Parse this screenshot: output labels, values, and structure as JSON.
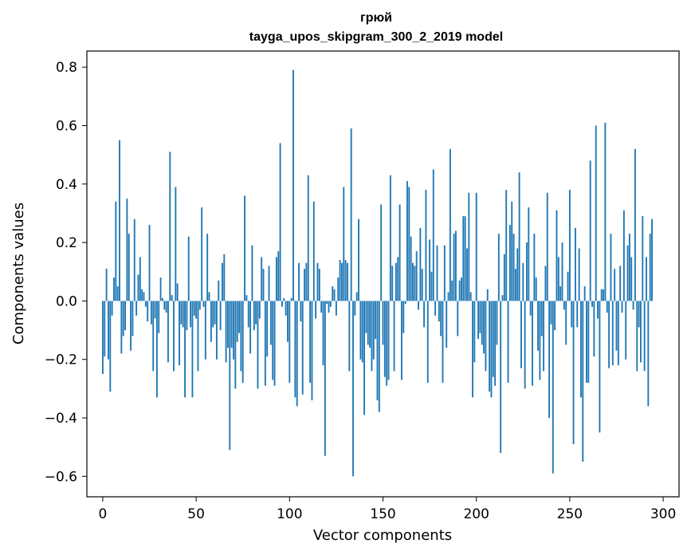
{
  "chart_data": {
    "type": "bar",
    "title": "грюй",
    "subtitle": "tayga_upos_skipgram_300_2_2019 model",
    "xlabel": "Vector components",
    "ylabel": "Components values",
    "xlim": [
      -8.5,
      308.5
    ],
    "ylim": [
      -0.67,
      0.855
    ],
    "xticks": [
      0,
      50,
      100,
      150,
      200,
      250,
      300
    ],
    "yticks": [
      -0.6,
      -0.4,
      -0.2,
      0.0,
      0.2,
      0.4,
      0.6,
      0.8
    ],
    "ytick_labels": [
      "−0.6",
      "−0.4",
      "−0.2",
      "0.0",
      "0.2",
      "0.4",
      "0.6",
      "0.8"
    ],
    "grid": false,
    "bar_color": "#1f77b4",
    "values": [
      -0.25,
      -0.19,
      0.11,
      -0.2,
      -0.31,
      -0.05,
      0.08,
      0.34,
      0.05,
      0.55,
      -0.18,
      -0.12,
      -0.1,
      0.35,
      0.23,
      -0.17,
      -0.12,
      0.28,
      -0.05,
      0.09,
      0.15,
      0.04,
      0.03,
      -0.02,
      -0.07,
      0.26,
      -0.08,
      -0.24,
      -0.06,
      -0.33,
      -0.11,
      0.08,
      0.01,
      -0.03,
      -0.04,
      -0.21,
      0.51,
      0.02,
      -0.24,
      0.39,
      0.06,
      -0.22,
      -0.08,
      -0.09,
      -0.33,
      -0.1,
      0.22,
      -0.09,
      -0.33,
      -0.05,
      -0.06,
      -0.24,
      -0.03,
      0.32,
      -0.02,
      -0.2,
      0.23,
      0.03,
      -0.14,
      -0.09,
      -0.08,
      -0.2,
      0.07,
      -0.1,
      0.13,
      0.16,
      -0.21,
      -0.16,
      -0.51,
      -0.16,
      -0.2,
      -0.3,
      -0.14,
      -0.11,
      -0.24,
      -0.28,
      0.36,
      0.02,
      -0.09,
      -0.18,
      0.19,
      -0.1,
      -0.08,
      -0.3,
      -0.06,
      0.15,
      0.11,
      -0.29,
      -0.19,
      0.12,
      -0.15,
      -0.27,
      -0.29,
      0.15,
      0.17,
      0.54,
      -0.02,
      0.01,
      -0.05,
      -0.14,
      -0.28,
      0.01,
      0.79,
      -0.33,
      -0.36,
      0.13,
      -0.07,
      -0.32,
      0.11,
      0.13,
      0.43,
      -0.28,
      -0.34,
      0.34,
      -0.06,
      0.13,
      0.11,
      -0.04,
      -0.22,
      -0.53,
      -0.01,
      -0.04,
      -0.02,
      0.05,
      0.04,
      -0.05,
      0.08,
      0.14,
      0.13,
      0.39,
      0.14,
      0.13,
      -0.24,
      0.59,
      -0.6,
      -0.05,
      0.03,
      0.28,
      -0.2,
      -0.21,
      -0.39,
      -0.11,
      -0.15,
      -0.16,
      -0.24,
      -0.2,
      -0.13,
      -0.34,
      -0.38,
      0.33,
      -0.15,
      -0.26,
      -0.29,
      -0.27,
      0.43,
      0.12,
      -0.24,
      0.13,
      0.15,
      0.33,
      -0.27,
      -0.11,
      -0.01,
      0.41,
      0.39,
      0.22,
      0.13,
      0.12,
      0.17,
      -0.03,
      0.25,
      0.11,
      -0.09,
      0.38,
      -0.28,
      0.21,
      0.1,
      0.45,
      -0.05,
      0.19,
      -0.07,
      -0.12,
      -0.28,
      0.19,
      -0.16,
      0.03,
      0.52,
      0.07,
      0.23,
      0.24,
      -0.12,
      0.07,
      0.08,
      0.29,
      0.29,
      0.18,
      0.37,
      0.03,
      -0.33,
      -0.21,
      0.37,
      -0.13,
      -0.11,
      -0.15,
      -0.18,
      -0.24,
      0.04,
      -0.31,
      -0.33,
      -0.26,
      -0.29,
      -0.15,
      0.23,
      -0.52,
      0.02,
      0.16,
      0.38,
      -0.28,
      0.26,
      0.34,
      0.23,
      0.11,
      0.18,
      0.44,
      -0.23,
      0.13,
      -0.3,
      0.2,
      0.32,
      -0.05,
      -0.29,
      0.23,
      0.08,
      -0.17,
      -0.27,
      -0.12,
      -0.24,
      0.12,
      0.37,
      -0.4,
      -0.08,
      -0.59,
      -0.1,
      0.31,
      0.15,
      0.05,
      0.2,
      -0.03,
      -0.15,
      0.1,
      0.38,
      -0.09,
      -0.49,
      0.25,
      -0.09,
      0.18,
      -0.33,
      -0.55,
      0.05,
      -0.28,
      -0.28,
      0.48,
      -0.02,
      -0.19,
      0.6,
      -0.06,
      -0.45,
      0.04,
      0.04,
      0.61,
      -0.04,
      -0.23,
      0.23,
      -0.22,
      0.11,
      -0.17,
      -0.22,
      0.12,
      -0.04,
      0.31,
      -0.2,
      0.19,
      0.23,
      0.15,
      -0.03,
      0.52,
      -0.24,
      -0.09,
      -0.21,
      0.29,
      -0.24,
      0.15,
      -0.36,
      0.23,
      0.28
    ]
  }
}
